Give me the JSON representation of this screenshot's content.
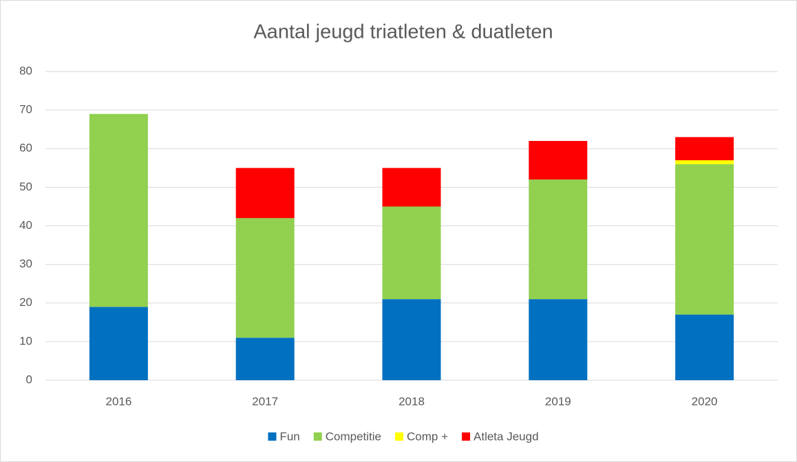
{
  "chart_data": {
    "type": "stacked_bar",
    "title": "Aantal jeugd triatleten & duatleten",
    "categories": [
      "2016",
      "2017",
      "2018",
      "2019",
      "2020"
    ],
    "series": [
      {
        "name": "Fun",
        "color": "#0070c0",
        "values": [
          19,
          11,
          21,
          21,
          17
        ]
      },
      {
        "name": "Competitie",
        "color": "#92d050",
        "values": [
          50,
          31,
          24,
          31,
          39
        ]
      },
      {
        "name": "Comp +",
        "color": "#ffff00",
        "values": [
          0,
          0,
          0,
          0,
          1
        ]
      },
      {
        "name": "Atleta Jeugd",
        "color": "#ff0000",
        "values": [
          0,
          13,
          10,
          10,
          6
        ]
      }
    ],
    "ylim": [
      0,
      80
    ],
    "yticks": [
      0,
      10,
      20,
      30,
      40,
      50,
      60,
      70,
      80
    ],
    "grid": true,
    "legend": "bottom"
  }
}
